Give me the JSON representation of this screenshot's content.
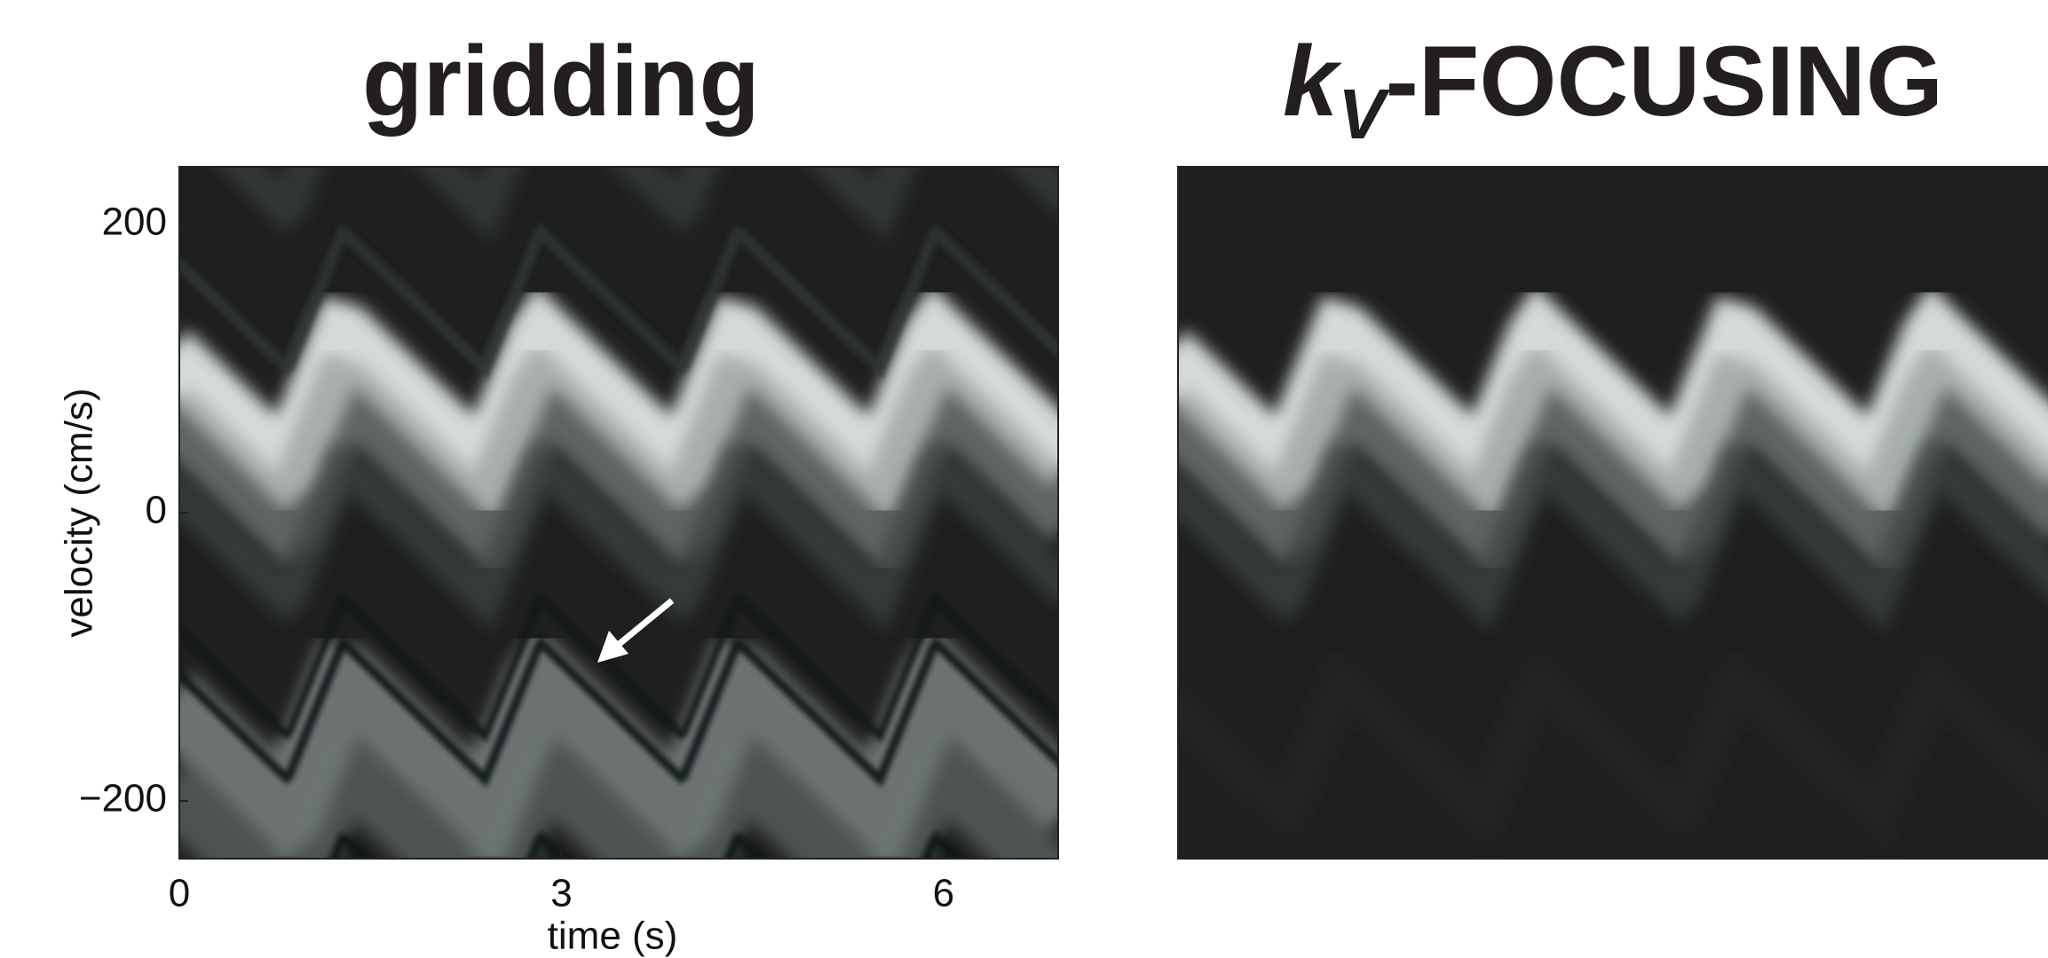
{
  "chart_data": [
    {
      "type": "image",
      "title": "gridding",
      "x_label": "time (s)",
      "y_label": "velocity (cm/s)",
      "xlim": [
        0,
        6.9
      ],
      "ylim": [
        -240,
        240
      ],
      "xticks": [
        0,
        3,
        6
      ],
      "yticks": [
        {
          "value": -200,
          "label": "−200"
        },
        0,
        200
      ],
      "aliasing": true
    },
    {
      "type": "image",
      "title_parts": [
        "k",
        "V",
        "-FOCUSING"
      ],
      "xlim": [
        0,
        6.9
      ],
      "ylim": [
        -240,
        240
      ],
      "aliasing": false
    }
  ]
}
